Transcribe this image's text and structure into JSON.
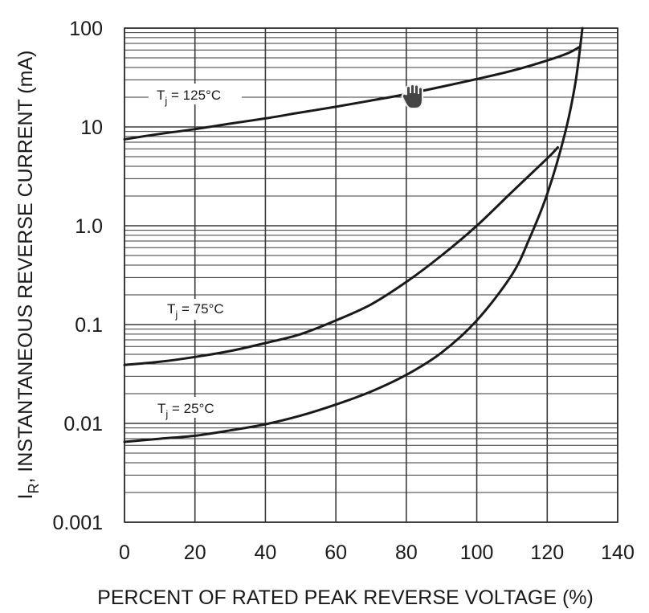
{
  "chart_data": {
    "type": "line",
    "title": "",
    "xlabel": "PERCENT OF RATED PEAK REVERSE VOLTAGE (%)",
    "ylabel_main": "I",
    "ylabel_sub": "R",
    "ylabel_rest": ", INSTANTANEOUS REVERSE CURRENT (mA)",
    "xlim": [
      0,
      140
    ],
    "ylim": [
      0.001,
      100
    ],
    "yscale": "log",
    "grid": true,
    "x_ticks": [
      0,
      20,
      40,
      60,
      80,
      100,
      120,
      140
    ],
    "x_tick_labels": [
      "0",
      "20",
      "40",
      "60",
      "80",
      "100",
      "120",
      "140"
    ],
    "y_ticks": [
      0.001,
      0.01,
      0.1,
      1,
      10,
      100
    ],
    "y_tick_labels": [
      "0.001",
      "0.01",
      "0.1",
      "1.0",
      "10",
      "100"
    ],
    "series": [
      {
        "name": "125°C",
        "label_prefix": "T",
        "label_sub": "j",
        "label_suffix": " = 125°C",
        "x": [
          0,
          10,
          20,
          30,
          40,
          50,
          60,
          70,
          80,
          90,
          100,
          110,
          120,
          126,
          129
        ],
        "y": [
          7.5,
          8.5,
          9.5,
          10.8,
          12.2,
          14,
          16,
          18.5,
          21.5,
          25.5,
          30.5,
          37,
          47,
          56,
          64
        ]
      },
      {
        "name": "75°C",
        "label_prefix": "T",
        "label_sub": "j",
        "label_suffix": " = 75°C",
        "x": [
          0,
          10,
          20,
          30,
          40,
          50,
          60,
          70,
          80,
          90,
          100,
          110,
          120,
          123
        ],
        "y": [
          0.039,
          0.042,
          0.047,
          0.054,
          0.065,
          0.08,
          0.11,
          0.16,
          0.27,
          0.5,
          1.0,
          2.2,
          4.8,
          6.2
        ]
      },
      {
        "name": "25°C",
        "label_prefix": "T",
        "label_sub": "j",
        "label_suffix": " = 25°C",
        "x": [
          0,
          10,
          20,
          30,
          40,
          50,
          60,
          70,
          80,
          90,
          100,
          110,
          115,
          120,
          125,
          128,
          130
        ],
        "y": [
          0.0065,
          0.007,
          0.0075,
          0.0085,
          0.0098,
          0.012,
          0.0155,
          0.021,
          0.031,
          0.052,
          0.11,
          0.32,
          0.75,
          2.1,
          8.5,
          28,
          100
        ]
      }
    ]
  }
}
